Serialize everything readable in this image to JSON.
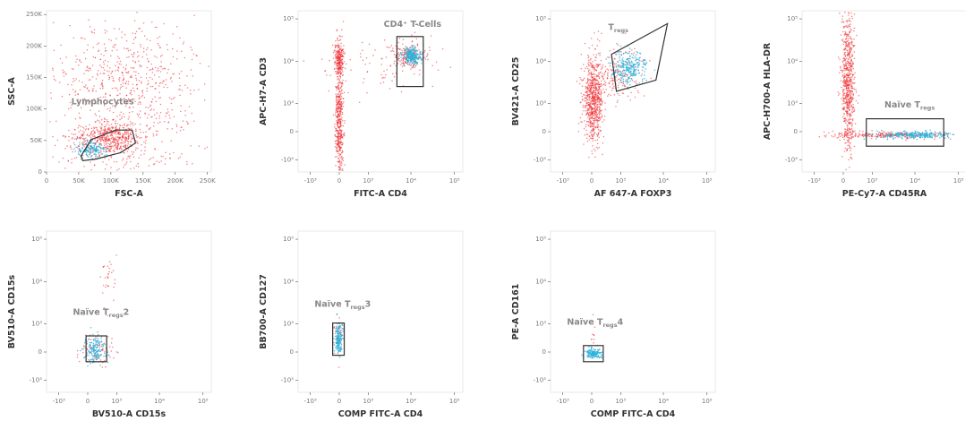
{
  "panels": [
    {
      "y_label": "SSC-A",
      "x_label": "FSC-A",
      "gate_label": {
        "text": "Lymphocytes"
      },
      "xticks": [
        0,
        {
          "value": 50000,
          "label": "50K"
        },
        {
          "value": 100000,
          "label": "100K"
        },
        {
          "value": 150000,
          "label": "150K"
        },
        {
          "value": 200000,
          "label": "200K"
        },
        {
          "value": 250000,
          "label": "250K"
        }
      ],
      "yticks": [
        0,
        {
          "value": 50000,
          "label": "50K"
        },
        {
          "value": 100000,
          "label": "100K"
        },
        {
          "value": 150000,
          "label": "150K"
        },
        {
          "value": 200000,
          "label": "200K"
        },
        {
          "value": 250000,
          "label": "250K"
        }
      ]
    },
    {
      "y_label": "APC-H7-A CD3",
      "x_label": "FITC-A CD4",
      "gate_label": {
        "text": "CD4⁺ T-Cells"
      },
      "xticks": [
        {
          "value": -1000,
          "label": "-10³"
        },
        0,
        {
          "value": 1000,
          "label": "10³"
        },
        {
          "value": 10000,
          "label": "10⁴"
        },
        {
          "value": 100000,
          "label": "10⁵"
        }
      ],
      "yticks": [
        {
          "value": -1000,
          "label": "-10³"
        },
        0,
        {
          "value": 1000,
          "label": "10³"
        },
        {
          "value": 10000,
          "label": "10⁴"
        },
        {
          "value": 100000,
          "label": "10⁵"
        }
      ]
    },
    {
      "y_label": "BV421-A CD25",
      "x_label": "AF 647-A FOXP3",
      "gate_label": {
        "text": "T",
        "sub": "regs"
      },
      "xticks": [
        {
          "value": -1000,
          "label": "-10³"
        },
        0,
        {
          "value": 1000,
          "label": "10³"
        },
        {
          "value": 10000,
          "label": "10⁴"
        },
        {
          "value": 100000,
          "label": "10⁵"
        }
      ],
      "yticks": [
        {
          "value": -1000,
          "label": "-10³"
        },
        0,
        {
          "value": 1000,
          "label": "10³"
        },
        {
          "value": 10000,
          "label": "10⁴"
        },
        {
          "value": 100000,
          "label": "10⁵"
        }
      ]
    },
    {
      "y_label": "APC-H700-A HLA-DR",
      "x_label": "PE-Cy7-A CD45RA",
      "gate_label": {
        "text": "Naïve T",
        "sub": "regs"
      },
      "xticks": [
        {
          "value": -1000,
          "label": "-10³"
        },
        0,
        {
          "value": 1000,
          "label": "10³"
        },
        {
          "value": 10000,
          "label": "10⁴"
        },
        {
          "value": 100000,
          "label": "10⁵"
        }
      ],
      "yticks": [
        {
          "value": -1000,
          "label": "-10³"
        },
        0,
        {
          "value": 1000,
          "label": "10³"
        },
        {
          "value": 10000,
          "label": "10⁴"
        },
        {
          "value": 100000,
          "label": "10⁵"
        }
      ]
    },
    {
      "y_label": "BV510-A CD15s",
      "x_label": "BV510-A CD15s",
      "gate_label": {
        "text": "Naïve T",
        "sub": "regs",
        "after": "2"
      },
      "xticks": [
        {
          "value": -1000,
          "label": "-10³"
        },
        0,
        {
          "value": 1000,
          "label": "10³"
        },
        {
          "value": 10000,
          "label": "10⁴"
        },
        {
          "value": 100000,
          "label": "10⁵"
        }
      ],
      "yticks": [
        {
          "value": -1000,
          "label": "-10³"
        },
        0,
        {
          "value": 1000,
          "label": "10³"
        },
        {
          "value": 10000,
          "label": "10⁴"
        },
        {
          "value": 100000,
          "label": "10⁵"
        }
      ]
    },
    {
      "y_label": "BB700-A CD127",
      "x_label": "COMP FITC-A CD4",
      "gate_label": {
        "text": "Naïve T",
        "sub": "regs",
        "after": "3"
      },
      "xticks": [
        {
          "value": -1000,
          "label": "-10³"
        },
        0,
        {
          "value": 1000,
          "label": "10³"
        },
        {
          "value": 10000,
          "label": "10⁴"
        },
        {
          "value": 100000,
          "label": "10⁵"
        }
      ],
      "yticks": [
        {
          "value": -1000,
          "label": "-10³"
        },
        0,
        {
          "value": 1000,
          "label": "10³"
        },
        {
          "value": 10000,
          "label": "10⁴"
        },
        {
          "value": 100000,
          "label": "10⁵"
        }
      ]
    },
    {
      "y_label": "PE-A CD161",
      "x_label": "COMP FITC-A CD4",
      "gate_label": {
        "text": "Naïve T",
        "sub": "regs",
        "after": "4"
      },
      "xticks": [
        {
          "value": -1000,
          "label": "-10³"
        },
        0,
        {
          "value": 1000,
          "label": "10³"
        },
        {
          "value": 10000,
          "label": "10⁴"
        },
        {
          "value": 100000,
          "label": "10⁵"
        }
      ],
      "yticks": [
        {
          "value": -1000,
          "label": "-10³"
        },
        0,
        {
          "value": 1000,
          "label": "10³"
        },
        {
          "value": 10000,
          "label": "10⁴"
        },
        {
          "value": 100000,
          "label": "10⁵"
        }
      ]
    }
  ]
}
